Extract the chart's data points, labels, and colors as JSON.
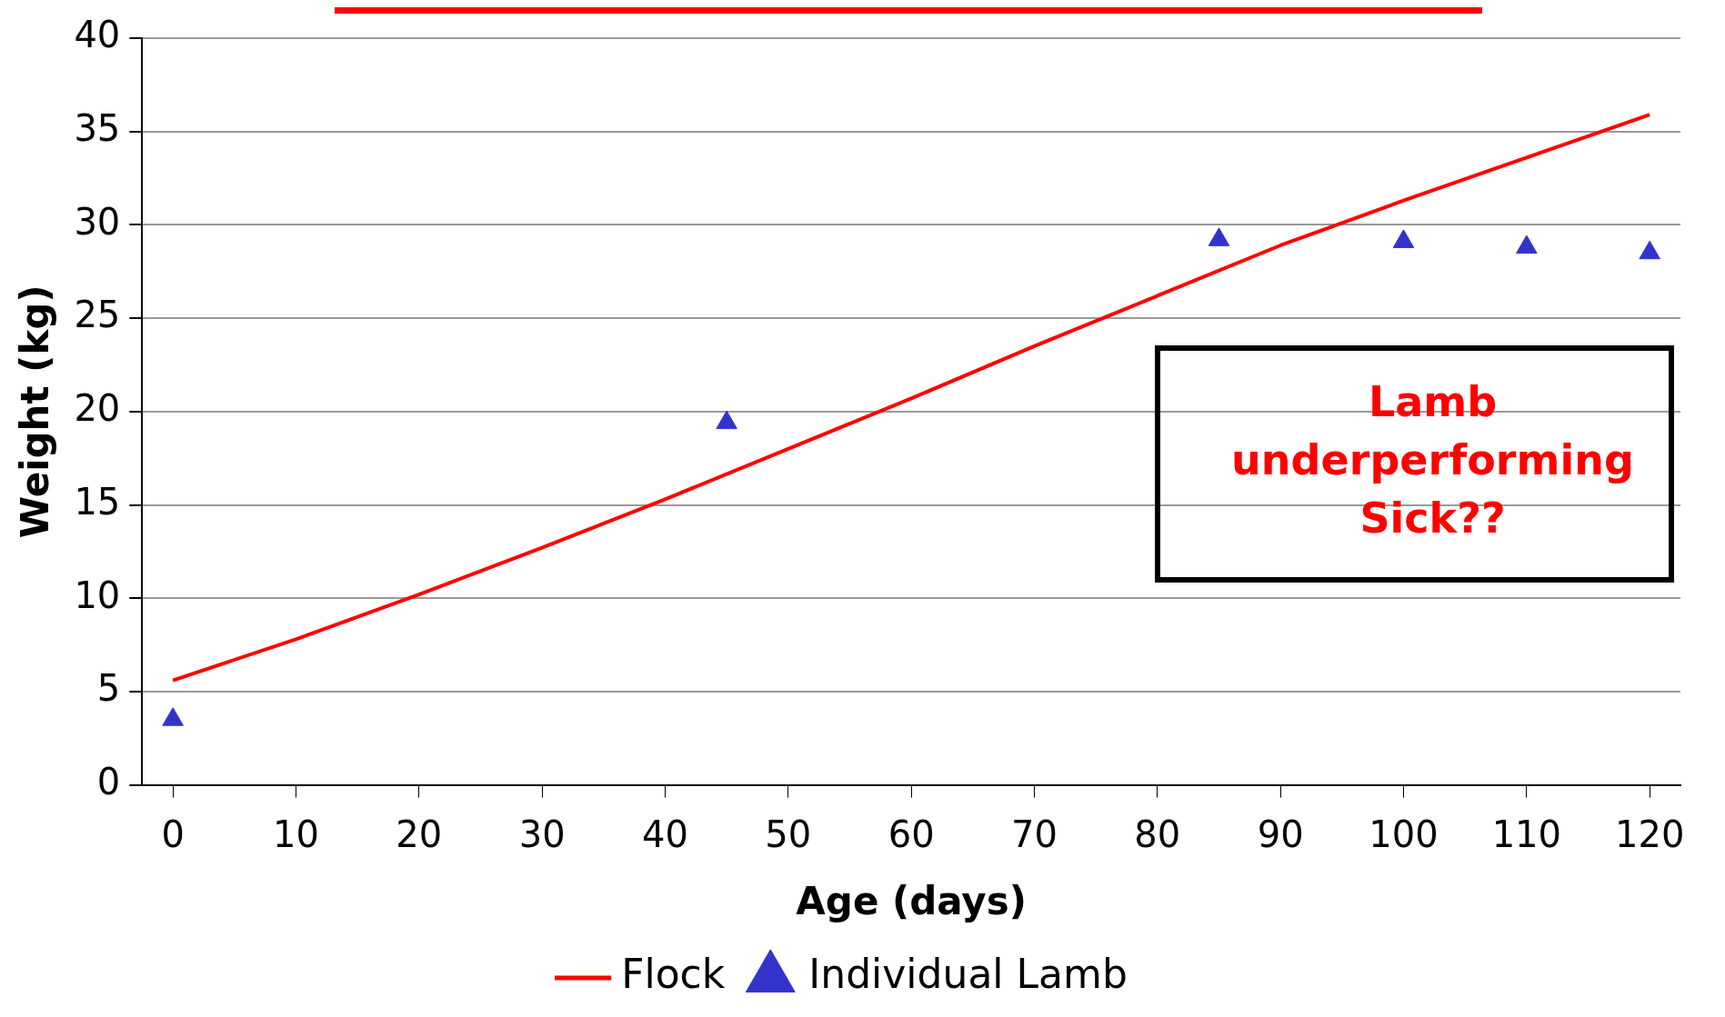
{
  "chart_data": {
    "type": "line",
    "xlabel": "Age (days)",
    "ylabel": "Weight (kg)",
    "xlim": [
      -2.5,
      122.5
    ],
    "xticks": [
      0,
      10,
      20,
      30,
      40,
      50,
      60,
      70,
      80,
      90,
      100,
      110,
      120
    ],
    "ylim": [
      0,
      40
    ],
    "yticks": [
      0,
      5,
      10,
      15,
      20,
      25,
      30,
      35,
      40
    ],
    "grid": "y",
    "legend": "bottom",
    "annotations": [
      "Lamb\nunderperforming\nSick??"
    ],
    "series": [
      {
        "name": "Flock",
        "type": "line",
        "color": "#ff0000",
        "marker": "none",
        "x": [
          0,
          10,
          20,
          30,
          40,
          50,
          60,
          70,
          80,
          90,
          100,
          110,
          120
        ],
        "values": [
          5.6,
          7.8,
          10.2,
          12.7,
          15.3,
          18.0,
          20.7,
          23.5,
          26.2,
          28.9,
          31.3,
          33.6,
          35.9
        ]
      },
      {
        "name": "Individual Lamb",
        "type": "scatter",
        "color": "#3333cc",
        "marker": "triangle",
        "x": [
          0,
          45,
          85,
          100,
          110,
          120
        ],
        "values": [
          3.5,
          19.4,
          29.2,
          29.1,
          28.8,
          28.5
        ]
      }
    ]
  }
}
